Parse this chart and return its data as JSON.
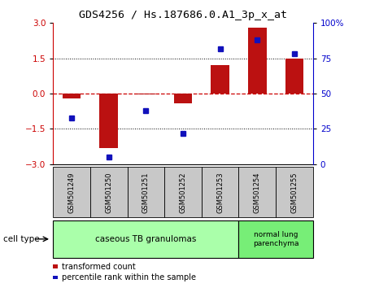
{
  "title": "GDS4256 / Hs.187686.0.A1_3p_x_at",
  "samples": [
    "GSM501249",
    "GSM501250",
    "GSM501251",
    "GSM501252",
    "GSM501253",
    "GSM501254",
    "GSM501255"
  ],
  "transformed_count": [
    -0.2,
    -2.3,
    -0.05,
    -0.4,
    1.2,
    2.8,
    1.5
  ],
  "percentile_rank": [
    33,
    5,
    38,
    22,
    82,
    88,
    78
  ],
  "ylim_left": [
    -3,
    3
  ],
  "ylim_right": [
    0,
    100
  ],
  "yticks_left": [
    -3,
    -1.5,
    0,
    1.5,
    3
  ],
  "yticks_right": [
    0,
    25,
    50,
    75,
    100
  ],
  "ytick_labels_right": [
    "0",
    "25",
    "50",
    "75",
    "100%"
  ],
  "bar_color": "#bb1111",
  "dot_color": "#1111bb",
  "cell_groups": [
    {
      "label": "caseous TB granulomas",
      "n_samples": 5,
      "color": "#aaffaa"
    },
    {
      "label": "normal lung\nparenchyma",
      "n_samples": 2,
      "color": "#77ee77"
    }
  ],
  "legend_items": [
    {
      "color": "#bb1111",
      "label": "transformed count"
    },
    {
      "color": "#1111bb",
      "label": "percentile rank within the sample"
    }
  ],
  "cell_type_label": "cell type",
  "tick_bg_color": "#c8c8c8",
  "bar_width": 0.5
}
